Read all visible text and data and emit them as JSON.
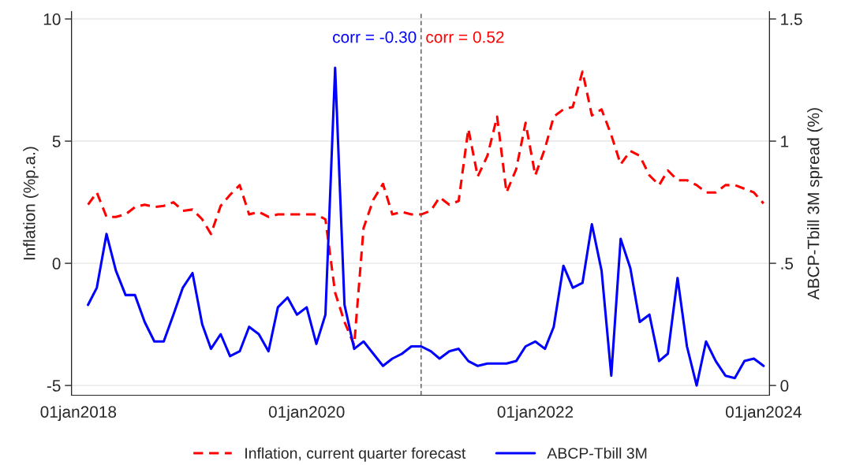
{
  "chart_data": {
    "type": "line",
    "x": [
      "2018-02",
      "2018-03",
      "2018-04",
      "2018-05",
      "2018-06",
      "2018-07",
      "2018-08",
      "2018-09",
      "2018-10",
      "2018-11",
      "2018-12",
      "2019-01",
      "2019-02",
      "2019-03",
      "2019-04",
      "2019-05",
      "2019-06",
      "2019-07",
      "2019-08",
      "2019-09",
      "2019-10",
      "2019-11",
      "2019-12",
      "2020-01",
      "2020-02",
      "2020-03",
      "2020-04",
      "2020-05",
      "2020-06",
      "2020-07",
      "2020-08",
      "2020-09",
      "2020-10",
      "2020-11",
      "2020-12",
      "2021-01",
      "2021-02",
      "2021-03",
      "2021-04",
      "2021-05",
      "2021-06",
      "2021-07",
      "2021-08",
      "2021-09",
      "2021-10",
      "2021-11",
      "2021-12",
      "2022-01",
      "2022-02",
      "2022-03",
      "2022-04",
      "2022-05",
      "2022-06",
      "2022-07",
      "2022-08",
      "2022-09",
      "2022-10",
      "2022-11",
      "2022-12",
      "2023-01",
      "2023-02",
      "2023-03",
      "2023-04",
      "2023-05",
      "2023-06",
      "2023-07",
      "2023-08",
      "2023-09",
      "2023-10",
      "2023-11",
      "2023-12",
      "2024-01"
    ],
    "series": [
      {
        "name": "Inflation, current quarter forecast",
        "color": "#ff0000",
        "line_style": "dashed",
        "values": [
          2.4,
          2.9,
          1.9,
          1.9,
          2.0,
          2.3,
          2.4,
          2.3,
          2.35,
          2.5,
          2.15,
          2.2,
          1.8,
          1.2,
          2.35,
          2.8,
          3.2,
          2.0,
          2.1,
          1.9,
          2.0,
          2.0,
          2.0,
          2.0,
          2.0,
          1.8,
          -1.2,
          -2.4,
          -3.35,
          1.45,
          2.6,
          3.25,
          2.0,
          2.1,
          2.0,
          2.0,
          2.15,
          2.7,
          2.4,
          2.55,
          5.5,
          3.55,
          4.4,
          6.0,
          2.9,
          3.85,
          5.75,
          3.6,
          4.7,
          6.0,
          6.3,
          6.4,
          7.85,
          6.05,
          6.3,
          5.25,
          4.05,
          4.6,
          4.4,
          3.6,
          3.2,
          3.8,
          3.4,
          3.4,
          3.2,
          2.9,
          2.9,
          3.2,
          3.2,
          3.05,
          2.9,
          2.45
        ]
      },
      {
        "name": "ABCP-Tbill 3M",
        "color": "#0000ff",
        "line_style": "solid",
        "axis": "y2",
        "values": [
          0.33,
          0.4,
          0.62,
          0.47,
          0.37,
          0.37,
          0.26,
          0.18,
          0.18,
          0.29,
          0.4,
          0.46,
          0.25,
          0.15,
          0.21,
          0.12,
          0.14,
          0.24,
          0.21,
          0.14,
          0.32,
          0.36,
          0.29,
          0.32,
          0.17,
          0.29,
          1.3,
          0.33,
          0.15,
          0.18,
          0.13,
          0.08,
          0.11,
          0.13,
          0.16,
          0.16,
          0.14,
          0.11,
          0.14,
          0.15,
          0.1,
          0.08,
          0.09,
          0.09,
          0.09,
          0.1,
          0.16,
          0.18,
          0.15,
          0.24,
          0.49,
          0.4,
          0.42,
          0.66,
          0.47,
          0.04,
          0.6,
          0.48,
          0.26,
          0.29,
          0.1,
          0.13,
          0.44,
          0.16,
          0.0,
          0.18,
          0.1,
          0.04,
          0.03,
          0.1,
          0.11,
          0.08
        ]
      }
    ],
    "xlim": [
      "2017-12-10",
      "2024-01-20"
    ],
    "xticks": [
      {
        "value": "2018-01-01",
        "label": "01jan2018"
      },
      {
        "value": "2020-01-01",
        "label": "01jan2020"
      },
      {
        "value": "2022-01-01",
        "label": "01jan2022"
      },
      {
        "value": "2024-01-01",
        "label": "01jan2024"
      }
    ],
    "ylim": [
      -5.4,
      10.3
    ],
    "yticks": [
      -5,
      0,
      5,
      10
    ],
    "y2lim": [
      -0.04,
      1.53
    ],
    "y2ticks": [
      0,
      {
        "value": 0.5,
        "label": ".5"
      },
      1,
      1.5
    ],
    "ylabel": "Inflation (%p.a.)",
    "y2label": "ABCP-Tbill 3M spread (%)",
    "ref_lines": [
      {
        "axis": "x",
        "value": "2021-01",
        "color": "#555555",
        "line_style": "dashed"
      }
    ],
    "annotations": [
      {
        "text": "corr = -0.30",
        "x": "2021-01",
        "y": 9.2
      },
      {
        "text": "corr = 0.52",
        "x": "2021-01",
        "y": 9.2
      }
    ],
    "grid": "y",
    "legend": "bottom",
    "marker": "none"
  }
}
